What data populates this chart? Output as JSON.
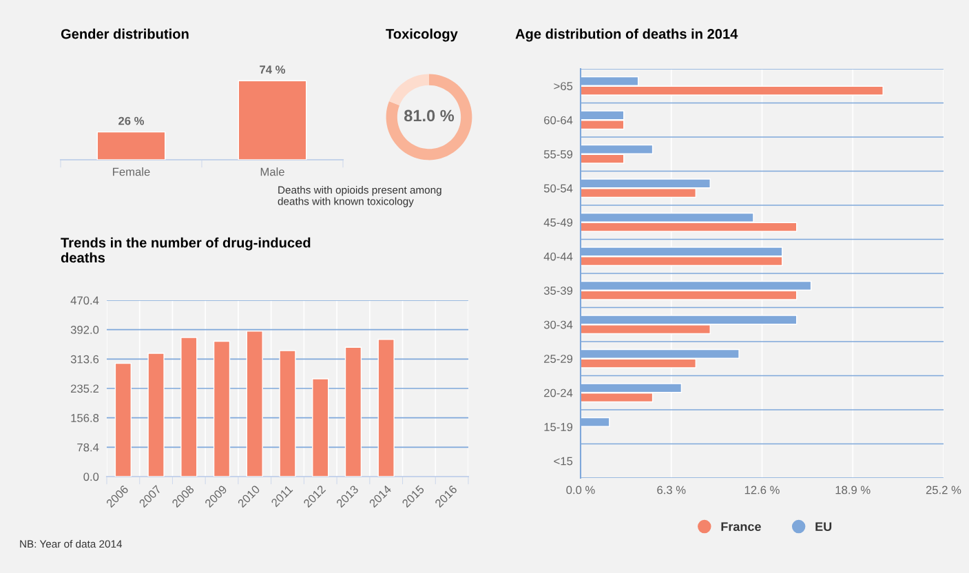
{
  "chart_data": [
    {
      "type": "bar",
      "title": "Gender distribution",
      "categories": [
        "Female",
        "Male"
      ],
      "values": [
        26,
        74
      ],
      "value_labels": [
        "26 %",
        "74 %"
      ],
      "color": "#f4846a",
      "tick_labels": "x"
    },
    {
      "type": "donut",
      "title": "Toxicology",
      "categories": [
        null,
        null
      ],
      "values": [
        81,
        19
      ],
      "colors": [
        "#f9b397",
        "#fddccd"
      ],
      "value_labels": [
        "81.0 %",
        null
      ],
      "annotations": [
        "Deaths with opioids present among\ndeaths with known toxicology"
      ]
    },
    {
      "type": "bar",
      "title": "Trends in the number of drug-induced\ndeaths",
      "categories": [
        "2006",
        "2007",
        "2008",
        "2009",
        "2010",
        "2011",
        "2012",
        "2013",
        "2014",
        "2015",
        "2016"
      ],
      "values": [
        302,
        329,
        371,
        361,
        388,
        336,
        261,
        345,
        366,
        null,
        null
      ],
      "color": "#f4846a",
      "ylim": [
        0,
        470.4
      ],
      "yticks": [
        {
          "value": 0,
          "label": "0.0"
        },
        78.4,
        156.8,
        235.2,
        313.6,
        {
          "value": 392,
          "label": "392.0"
        },
        470.4
      ],
      "grid": "y",
      "annotations": [
        "NB: Year of data 2014"
      ]
    },
    {
      "type": "bar",
      "orientation": "horizontal",
      "title": "Age distribution of deaths in 2014",
      "categories": [
        ">65",
        "60-64",
        "55-59",
        "50-54",
        "45-49",
        "40-44",
        "35-39",
        "30-34",
        "25-29",
        "20-24",
        "15-19",
        "<15"
      ],
      "series": [
        {
          "name": "France",
          "color": "#f4846a",
          "values": [
            21,
            3,
            3,
            8,
            15,
            14,
            15,
            9,
            8,
            5,
            0,
            0
          ]
        },
        {
          "name": "EU",
          "color": "#7ea7da",
          "values": [
            4,
            3,
            5,
            9,
            12,
            14,
            16,
            15,
            11,
            7,
            2,
            0
          ]
        }
      ],
      "xlim": [
        0,
        25.2
      ],
      "xticks": [
        {
          "value": 0,
          "label": "0.0 %"
        },
        {
          "value": 6.3,
          "label": "6.3 %"
        },
        {
          "value": 12.6,
          "label": "12.6 %"
        },
        {
          "value": 18.9,
          "label": "18.9 %"
        },
        {
          "value": 25.2,
          "label": "25.2 %"
        }
      ],
      "grid": "x",
      "legend": "bottom"
    }
  ]
}
